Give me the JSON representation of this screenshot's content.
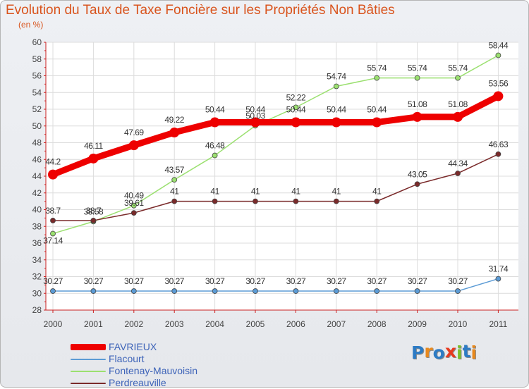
{
  "page": {
    "title": "Evolution du Taux de Taxe Foncière sur les Propriétés Non Bâties",
    "subtitle": "(en %)",
    "logo_text": "Proxiti"
  },
  "chart_data": {
    "type": "line",
    "categories": [
      "2000",
      "2001",
      "2002",
      "2003",
      "2004",
      "2005",
      "2006",
      "2007",
      "2008",
      "2009",
      "2010",
      "2011"
    ],
    "ylim": [
      28,
      60
    ],
    "yticks": [
      "28",
      "30",
      "32",
      "34",
      "36",
      "38",
      "40",
      "42",
      "44",
      "46",
      "48",
      "50",
      "52",
      "54",
      "56",
      "58",
      "60"
    ],
    "grid": true,
    "legend_position": "bottom-left",
    "series": [
      {
        "name": "FAVRIEUX",
        "color": "#ee0000",
        "values": [
          44.2,
          46.11,
          47.69,
          49.22,
          50.44,
          50.44,
          50.44,
          50.44,
          50.44,
          51.08,
          51.08,
          53.56
        ],
        "labels": [
          "44.2",
          "46.11",
          "47.69",
          "49.22",
          "50.44",
          "50.44",
          "50.44",
          "50.44",
          "50.44",
          "51.08",
          "51.08",
          "53.56"
        ]
      },
      {
        "name": "Flacourt",
        "color": "#5b9bd5",
        "values": [
          30.27,
          30.27,
          30.27,
          30.27,
          30.27,
          30.27,
          30.27,
          30.27,
          30.27,
          30.27,
          30.27,
          31.74
        ],
        "labels": [
          "30.27",
          "30.27",
          "30.27",
          "30.27",
          "30.27",
          "30.27",
          "30.27",
          "30.27",
          "30.27",
          "30.27",
          "30.27",
          "31.74"
        ]
      },
      {
        "name": "Fontenay-Mauvoisin",
        "color": "#9be070",
        "values": [
          37.14,
          38.58,
          40.49,
          43.57,
          46.48,
          50.03,
          52.22,
          54.74,
          55.74,
          55.74,
          55.74,
          58.44
        ],
        "labels": [
          "37.14",
          "38.58",
          "40.49",
          "43.57",
          "46.48",
          "50.03",
          "52.22",
          "54.74",
          "55.74",
          "55.74",
          "55.74",
          "58.44"
        ]
      },
      {
        "name": "Perdreauville",
        "color": "#7a2a2a",
        "values": [
          38.7,
          38.7,
          39.61,
          41,
          41,
          41,
          41,
          41,
          41,
          43.05,
          44.34,
          46.63
        ],
        "labels": [
          "38.7",
          "38.7",
          "39.61",
          "41",
          "41",
          "41",
          "41",
          "41",
          "41",
          "43.05",
          "44.34",
          "46.63"
        ]
      }
    ]
  }
}
